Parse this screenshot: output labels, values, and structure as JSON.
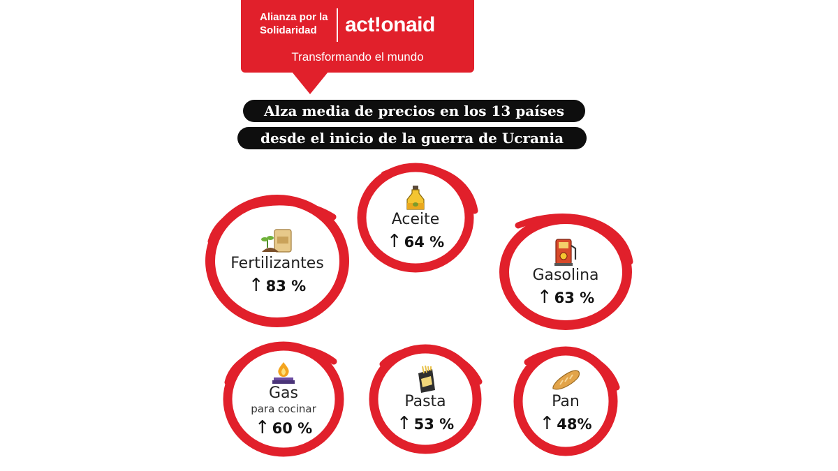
{
  "header": {
    "org_line1": "Alianza por la",
    "org_line2": "Solidaridad",
    "brand": "act!onaid",
    "tagline": "Transformando el mundo",
    "brand_color": "#e1202b"
  },
  "title": {
    "line1": "Alza media de precios en los 13 países",
    "line2": "desde el inicio de la guerra de Ucrania"
  },
  "items": [
    {
      "label": "Aceite",
      "value": "64 %",
      "icon": "oil-bottle-icon"
    },
    {
      "label": "Fertilizantes",
      "value": "83 %",
      "icon": "fertilizer-bag-icon"
    },
    {
      "label": "Gasolina",
      "value": "63 %",
      "icon": "fuel-pump-icon"
    },
    {
      "label": "Gas",
      "sublabel": "para cocinar",
      "value": "60 %",
      "icon": "gas-stove-icon"
    },
    {
      "label": "Pasta",
      "value": "53 %",
      "icon": "pasta-bag-icon"
    },
    {
      "label": "Pan",
      "value": "48%",
      "icon": "bread-icon"
    }
  ],
  "arrow_symbol": "↑",
  "ring_color": "#e1202b"
}
